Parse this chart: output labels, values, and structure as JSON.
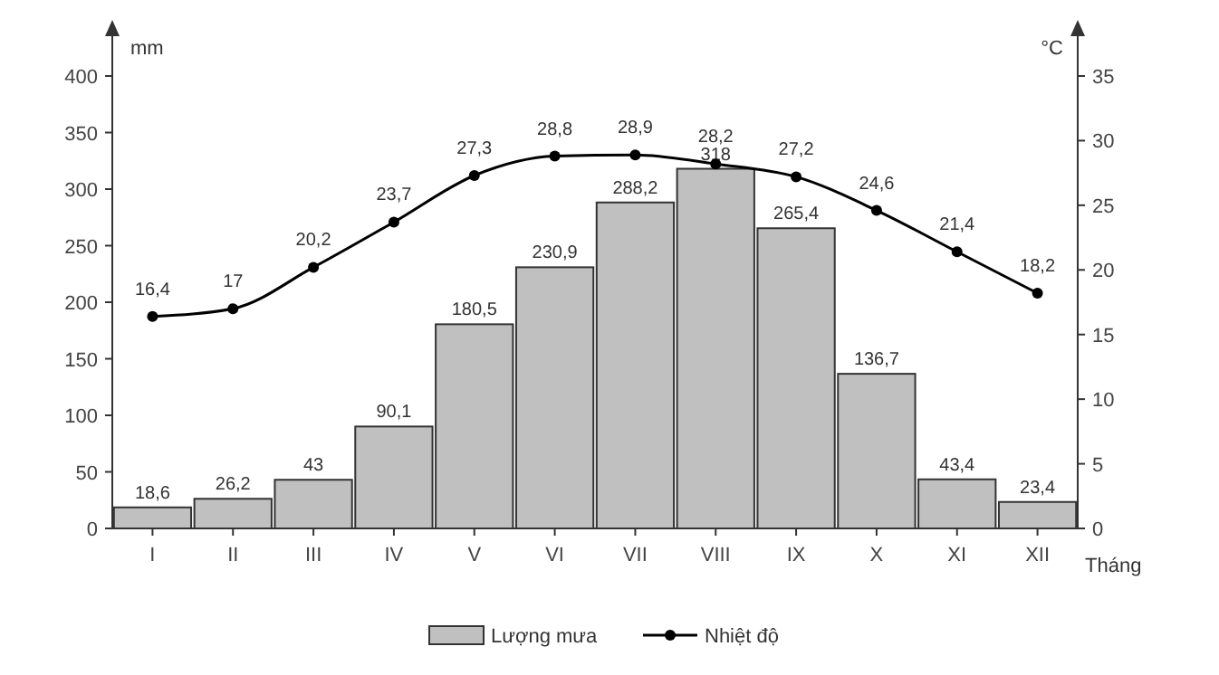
{
  "chart_data": {
    "type": "bar",
    "categories": [
      "I",
      "II",
      "III",
      "IV",
      "V",
      "VI",
      "VII",
      "VIII",
      "IX",
      "X",
      "XI",
      "XII"
    ],
    "series": [
      {
        "name": "Lượng mưa",
        "color": "#c0c0c0",
        "values": [
          18.6,
          26.2,
          43,
          90.1,
          180.5,
          230.9,
          288.2,
          318,
          265.4,
          136.7,
          43.4,
          23.4
        ],
        "value_labels": [
          "18,6",
          "26,2",
          "43",
          "90,1",
          "180,5",
          "230,9",
          "288,2",
          "318",
          "265,4",
          "136,7",
          "43,4",
          "23,4"
        ]
      },
      {
        "name": "Nhiệt độ",
        "type": "line",
        "axis": "y2",
        "color": "#000000",
        "values": [
          16.4,
          17,
          20.2,
          23.7,
          27.3,
          28.8,
          28.9,
          28.2,
          27.2,
          24.6,
          21.4,
          18.2
        ],
        "value_labels": [
          "16,4",
          "17",
          "20,2",
          "23,7",
          "27,3",
          "28,8",
          "28,9",
          "28,2",
          "27,2",
          "24,6",
          "21,4",
          "18,2"
        ]
      }
    ],
    "ylabel": "mm",
    "y2label": "°C",
    "xlabel": "Tháng",
    "ylim": [
      0,
      400
    ],
    "yticks": [
      0,
      50,
      100,
      150,
      200,
      250,
      300,
      350,
      400
    ],
    "y2lim": [
      0,
      35
    ],
    "y2ticks": [
      0,
      5,
      10,
      15,
      20,
      25,
      30,
      35
    ],
    "marker": "circle",
    "line_style": "solid",
    "grid": false,
    "legend": "bottom"
  }
}
